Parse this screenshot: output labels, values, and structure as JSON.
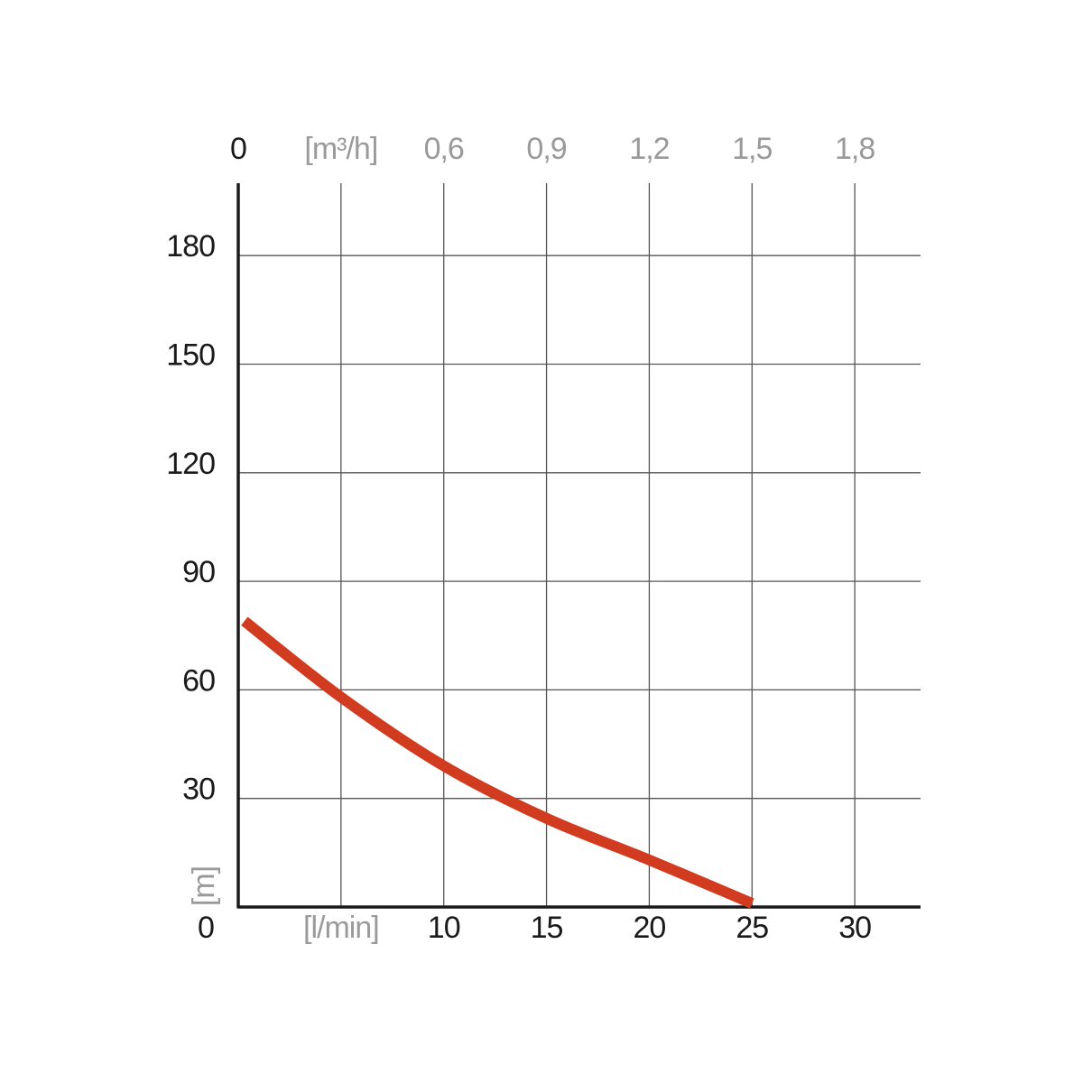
{
  "chart_data": {
    "type": "line",
    "x": [
      0.3,
      5,
      10,
      15,
      20,
      25
    ],
    "series": [
      {
        "color": "#d13b1f",
        "values": [
          79,
          58,
          39,
          24.5,
          13,
          1
        ]
      }
    ],
    "xlim": [
      0,
      33.2
    ],
    "xticks": [
      0,
      {
        "value": 5,
        "label": "[l/min]"
      },
      10,
      15,
      20,
      25,
      30
    ],
    "x2lim": [
      0,
      1.992
    ],
    "x2ticks": [
      0,
      {
        "value": 0.3,
        "label": "[m³/h]"
      },
      {
        "value": 0.6,
        "label": "0,6"
      },
      {
        "value": 0.9,
        "label": "0,9"
      },
      {
        "value": 1.2,
        "label": "1,2"
      },
      {
        "value": 1.5,
        "label": "1,5"
      },
      {
        "value": 1.8,
        "label": "1,8"
      }
    ],
    "ylim": [
      0,
      200
    ],
    "yticks": [
      30,
      60,
      90,
      120,
      150,
      180
    ],
    "y_label": "[m]",
    "grid": true
  }
}
